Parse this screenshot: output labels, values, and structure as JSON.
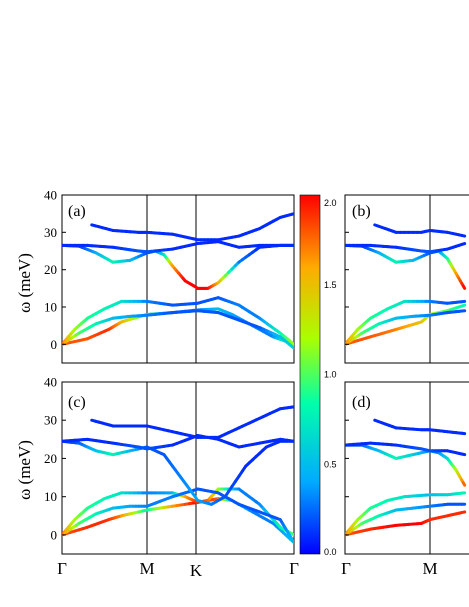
{
  "chart_data": {
    "type": "line",
    "description_type": "phonon dispersion with colored weight",
    "ylabel": "ω (meV)",
    "kpoints": [
      "Γ",
      "M",
      "K",
      "Γ"
    ],
    "ylim": [
      -5,
      40
    ],
    "yticks": [
      0,
      10,
      20,
      30,
      40
    ],
    "colorbar": {
      "ticks": [
        "0.0",
        "0.5",
        "1.0",
        "1.5",
        "2.0"
      ],
      "range": [
        0,
        2
      ],
      "colors": [
        "#0000ff",
        "#00aaff",
        "#00ffaa",
        "#aaff00",
        "#ffaa00",
        "#ff0000"
      ]
    },
    "panels": [
      {
        "label": "(a)",
        "bands": [
          {
            "x": [
              0.0,
              0.3,
              0.55,
              0.7,
              1.0,
              1.3,
              1.6,
              1.9,
              2.1,
              2.4,
              2.7,
              3.0
            ],
            "y": [
              0,
              1.5,
              4,
              6,
              8,
              8.5,
              9.2,
              9.5,
              8,
              5,
              2,
              0
            ],
            "w": [
              1.8,
              1.8,
              1.9,
              1.6,
              0.8,
              0.3,
              0.3,
              0.5,
              0.4,
              0.3,
              0.3,
              1.2
            ]
          },
          {
            "x": [
              0.0,
              0.15,
              0.3,
              0.5,
              0.7,
              1.0,
              1.3,
              1.6,
              1.9,
              2.2,
              2.5,
              2.8,
              3.0
            ],
            "y": [
              0,
              4,
              7,
              9.5,
              11.5,
              11.5,
              10.5,
              11,
              12.5,
              10.5,
              7,
              3,
              0
            ],
            "w": [
              1.8,
              1.2,
              0.9,
              0.8,
              0.7,
              0.3,
              0.2,
              0.2,
              0.2,
              0.3,
              0.3,
              0.8,
              1.2
            ]
          },
          {
            "x": [
              0.0,
              0.2,
              0.4,
              0.6,
              0.8,
              1.0,
              1.3,
              1.6,
              1.9,
              2.2,
              2.5,
              2.8,
              3.0
            ],
            "y": [
              0,
              3,
              5.5,
              7,
              7.5,
              7.8,
              8.5,
              9,
              8.5,
              6.5,
              4.5,
              2,
              -1
            ],
            "w": [
              1.8,
              1.0,
              0.8,
              0.5,
              0.4,
              0.3,
              0.2,
              0.2,
              0.2,
              0.2,
              0.2,
              0.5,
              0.6
            ]
          },
          {
            "x": [
              0.0,
              0.2,
              0.4,
              0.6,
              0.8,
              1.0,
              1.1,
              1.2,
              1.3,
              1.45,
              1.6,
              1.75,
              1.9,
              2.2,
              2.5,
              2.8,
              3.0
            ],
            "y": [
              26.5,
              26.3,
              24.5,
              22,
              22.5,
              24.5,
              25,
              24,
              21,
              17,
              15,
              15,
              16.5,
              22,
              26,
              26.5,
              26.5
            ],
            "w": [
              0.1,
              0.1,
              0.4,
              0.8,
              0.5,
              0.2,
              0.2,
              0.6,
              1.6,
              2.0,
              2.0,
              2.0,
              1.6,
              0.3,
              0.1,
              0.1,
              0.2
            ]
          },
          {
            "x": [
              0.0,
              0.3,
              0.6,
              0.9,
              1.0,
              1.3,
              1.6,
              1.9,
              2.2,
              2.5,
              2.8,
              3.0
            ],
            "y": [
              26.5,
              26.5,
              26,
              25,
              24.8,
              25.5,
              27,
              27.5,
              26,
              26.5,
              26.5,
              26.5
            ],
            "w": [
              0.1,
              0.1,
              0.1,
              0.2,
              0.2,
              0.1,
              0.1,
              0.1,
              0.1,
              0.1,
              0.1,
              0.1
            ]
          },
          {
            "x": [
              0.35,
              0.6,
              0.9,
              1.0,
              1.3,
              1.6,
              1.9,
              2.2,
              2.5,
              2.8,
              3.0
            ],
            "y": [
              32,
              30.5,
              30,
              30,
              29.5,
              28,
              28,
              29,
              31,
              34,
              35
            ],
            "w": [
              0.1,
              0.1,
              0.1,
              0.1,
              0.1,
              0.1,
              0.1,
              0.1,
              0.1,
              0.1,
              0.1
            ]
          }
        ]
      },
      {
        "label": "(b)",
        "bands": [
          {
            "x": [
              0.0,
              0.3,
              0.6,
              0.9,
              1.0,
              1.2,
              1.4
            ],
            "y": [
              0,
              2,
              4,
              6,
              8,
              9,
              10.5
            ],
            "w": [
              1.8,
              1.8,
              1.7,
              1.5,
              1.2,
              1.0,
              0.8
            ]
          },
          {
            "x": [
              0.0,
              0.15,
              0.3,
              0.5,
              0.7,
              1.0,
              1.2,
              1.4
            ],
            "y": [
              0,
              4,
              7,
              9.5,
              11.5,
              11.5,
              11,
              11.5
            ],
            "w": [
              1.8,
              1.2,
              0.9,
              0.8,
              0.7,
              0.3,
              0.2,
              0.2
            ]
          },
          {
            "x": [
              0.0,
              0.2,
              0.4,
              0.6,
              0.8,
              1.0,
              1.2,
              1.4
            ],
            "y": [
              0,
              3,
              5.5,
              7,
              7.5,
              7.8,
              8.5,
              9
            ],
            "w": [
              1.8,
              1.0,
              0.8,
              0.5,
              0.4,
              0.3,
              0.2,
              0.2
            ]
          },
          {
            "x": [
              0.0,
              0.2,
              0.4,
              0.6,
              0.8,
              1.0,
              1.1,
              1.2,
              1.3,
              1.4
            ],
            "y": [
              26.5,
              26.3,
              24.5,
              22,
              22.5,
              24.5,
              25,
              23,
              19,
              15
            ],
            "w": [
              0.1,
              0.1,
              0.4,
              0.8,
              0.5,
              0.2,
              0.2,
              0.8,
              1.6,
              2.0
            ]
          },
          {
            "x": [
              0.0,
              0.3,
              0.6,
              0.9,
              1.0,
              1.2,
              1.4
            ],
            "y": [
              26.5,
              26.5,
              26,
              25,
              24.8,
              25.5,
              27
            ],
            "w": [
              0.1,
              0.1,
              0.1,
              0.2,
              0.2,
              0.1,
              0.1
            ]
          },
          {
            "x": [
              0.35,
              0.6,
              0.9,
              1.0,
              1.2,
              1.4
            ],
            "y": [
              32,
              30,
              30,
              30.5,
              30,
              29
            ],
            "w": [
              0.1,
              0.1,
              0.1,
              0.1,
              0.1,
              0.1
            ]
          }
        ]
      },
      {
        "label": "(c)",
        "bands": [
          {
            "x": [
              0.0,
              0.3,
              0.55,
              0.7,
              1.0,
              1.3,
              1.6,
              1.9,
              2.1,
              2.4,
              2.7,
              3.0
            ],
            "y": [
              0,
              2,
              4,
              5,
              6.5,
              7.5,
              8.5,
              9.5,
              9,
              6,
              3,
              -2
            ],
            "w": [
              1.8,
              1.9,
              1.9,
              1.7,
              0.8,
              1.6,
              2.0,
              1.8,
              0.6,
              0.3,
              0.3,
              0.5
            ]
          },
          {
            "x": [
              0.0,
              0.15,
              0.3,
              0.5,
              0.7,
              1.0,
              1.3,
              1.45,
              1.6,
              1.75,
              1.9,
              2.2,
              2.5,
              2.8,
              3.0
            ],
            "y": [
              0,
              4,
              7,
              9.5,
              11,
              11,
              11,
              10,
              8.5,
              9,
              12,
              12,
              8,
              2,
              0
            ],
            "w": [
              1.8,
              1.2,
              0.9,
              0.8,
              0.7,
              0.3,
              0.4,
              1.6,
              1.9,
              1.8,
              1.2,
              0.3,
              0.3,
              0.8,
              1.0
            ]
          },
          {
            "x": [
              0.0,
              0.2,
              0.4,
              0.6,
              0.8,
              1.0,
              1.3,
              1.6,
              1.9,
              2.2,
              2.5,
              2.8,
              3.0
            ],
            "y": [
              0,
              3,
              5.5,
              7,
              7.5,
              7.5,
              10,
              12,
              11,
              8,
              6,
              4,
              -2
            ],
            "w": [
              1.8,
              1.0,
              0.8,
              0.5,
              0.4,
              0.3,
              0.3,
              0.2,
              0.2,
              0.2,
              0.2,
              0.2,
              0.5
            ]
          },
          {
            "x": [
              0.0,
              0.2,
              0.4,
              0.6,
              0.8,
              1.0,
              1.2,
              1.4,
              1.6,
              1.8,
              2.0,
              2.3,
              2.6,
              2.8,
              3.0
            ],
            "y": [
              24.5,
              24,
              22,
              21,
              22,
              23,
              21,
              15,
              9,
              8,
              10,
              18,
              23,
              24.5,
              24.5
            ],
            "w": [
              0.1,
              0.2,
              0.5,
              0.8,
              0.5,
              0.2,
              0.2,
              0.3,
              0.4,
              0.3,
              0.2,
              0.1,
              0.1,
              0.1,
              0.1
            ]
          },
          {
            "x": [
              0.0,
              0.3,
              0.6,
              0.9,
              1.0,
              1.3,
              1.6,
              1.9,
              2.2,
              2.5,
              2.8,
              3.0
            ],
            "y": [
              24.5,
              25,
              24,
              23,
              22.5,
              23.5,
              26,
              25,
              23,
              24,
              25,
              24.5
            ],
            "w": [
              0.1,
              0.1,
              0.1,
              0.2,
              0.2,
              0.1,
              0.1,
              0.1,
              0.1,
              0.1,
              0.1,
              0.1
            ]
          },
          {
            "x": [
              0.35,
              0.6,
              0.9,
              1.0,
              1.3,
              1.6,
              1.9,
              2.2,
              2.5,
              2.8,
              3.0
            ],
            "y": [
              30,
              28.5,
              28.5,
              28.5,
              27,
              25.5,
              25.5,
              28,
              30.5,
              33,
              33.5
            ],
            "w": [
              0.1,
              0.1,
              0.1,
              0.1,
              0.1,
              0.1,
              0.1,
              0.1,
              0.1,
              0.1,
              0.1
            ]
          }
        ]
      },
      {
        "label": "(d)",
        "bands": [
          {
            "x": [
              0.0,
              0.3,
              0.6,
              0.9,
              1.0,
              1.2,
              1.4
            ],
            "y": [
              0,
              1.5,
              2.5,
              3,
              4,
              5,
              6
            ],
            "w": [
              1.8,
              1.9,
              2.0,
              2.0,
              1.9,
              1.9,
              1.9
            ]
          },
          {
            "x": [
              0.0,
              0.15,
              0.3,
              0.5,
              0.7,
              1.0,
              1.2,
              1.4
            ],
            "y": [
              0,
              4,
              7,
              9,
              10,
              10.5,
              10.5,
              11
            ],
            "w": [
              1.8,
              1.2,
              0.9,
              0.8,
              0.7,
              0.5,
              0.6,
              0.8
            ]
          },
          {
            "x": [
              0.0,
              0.2,
              0.4,
              0.6,
              0.8,
              1.0,
              1.2,
              1.4
            ],
            "y": [
              0,
              3,
              5,
              6.5,
              7,
              7.5,
              8,
              8
            ],
            "w": [
              1.8,
              1.0,
              0.8,
              0.5,
              0.4,
              0.3,
              0.2,
              0.2
            ]
          },
          {
            "x": [
              0.0,
              0.2,
              0.4,
              0.6,
              0.8,
              1.0,
              1.1,
              1.2,
              1.3,
              1.4
            ],
            "y": [
              23.5,
              23.5,
              22,
              20,
              21,
              22,
              21.5,
              20,
              17,
              13
            ],
            "w": [
              0.1,
              0.2,
              0.5,
              0.8,
              0.6,
              0.3,
              0.3,
              0.6,
              1.2,
              1.8
            ]
          },
          {
            "x": [
              0.0,
              0.3,
              0.6,
              0.9,
              1.0,
              1.2,
              1.4
            ],
            "y": [
              23.5,
              24,
              23.5,
              22.5,
              22,
              22,
              21
            ],
            "w": [
              0.1,
              0.1,
              0.1,
              0.2,
              0.2,
              0.1,
              0.1
            ]
          },
          {
            "x": [
              0.35,
              0.6,
              0.9,
              1.0,
              1.2,
              1.4
            ],
            "y": [
              30,
              28,
              27.5,
              27.5,
              27,
              26.5
            ],
            "w": [
              0.1,
              0.1,
              0.1,
              0.1,
              0.1,
              0.1
            ]
          }
        ]
      }
    ]
  }
}
